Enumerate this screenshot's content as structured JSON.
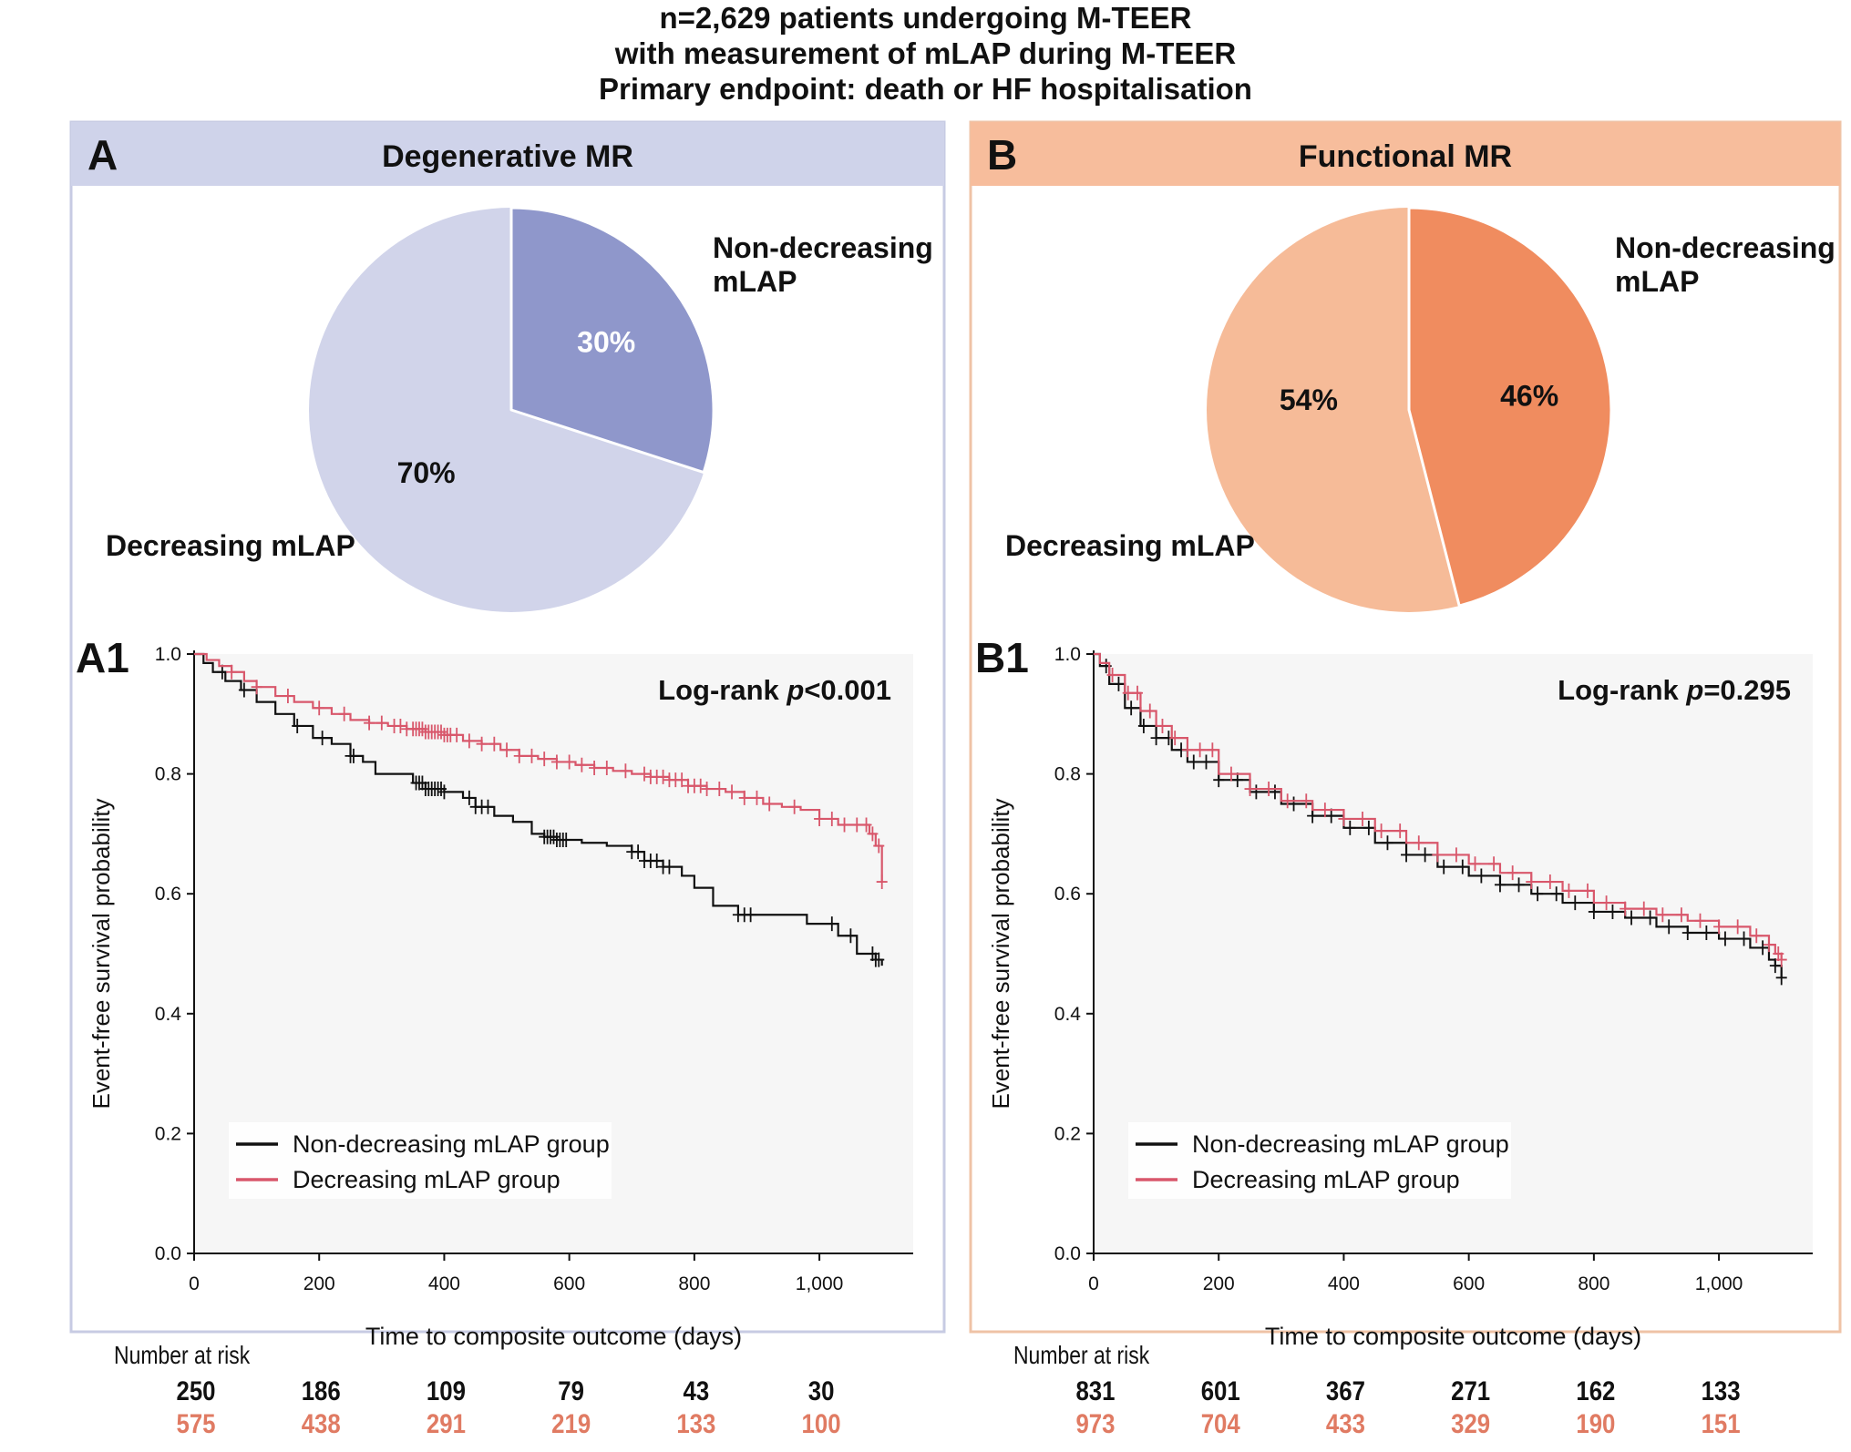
{
  "header": {
    "lines": [
      "n=2,629 patients undergoing M-TEER",
      "with measurement of mLAP during M-TEER",
      "Primary endpoint: death or HF hospitalisation"
    ]
  },
  "colors": {
    "panel_a_header": "#cfd3ea",
    "panel_a_border": "#c7cbe3",
    "panel_a_pie_major": "#d1d4ea",
    "panel_a_pie_minor": "#8f97cb",
    "panel_b_header": "#f7bd9c",
    "panel_b_border": "#efc3a6",
    "panel_b_pie_major": "#f6bb98",
    "panel_b_pie_minor": "#f08c5f",
    "km_nondecreasing": "#111111",
    "km_decreasing": "#d8576b",
    "risk_decreasing": "#e07b63",
    "plot_bg": "#f6f6f6"
  },
  "panels": [
    {
      "letter": "A",
      "title": "Degenerative MR",
      "pie_label_minor": [
        "Non-decreasing",
        "mLAP"
      ],
      "pie_label_major": "Decreasing mLAP",
      "km_letter": "A1",
      "logrank_prefix": "Log-rank ",
      "logrank_p": "p",
      "logrank_value": "<0.001",
      "number_at_risk_label": "Number at risk",
      "risk_nondecreasing": [
        "250",
        "186",
        "109",
        "79",
        "43",
        "30"
      ],
      "risk_decreasing": [
        "575",
        "438",
        "291",
        "219",
        "133",
        "100"
      ]
    },
    {
      "letter": "B",
      "title": "Functional MR",
      "pie_label_minor": [
        "Non-decreasing",
        "mLAP"
      ],
      "pie_label_major": "Decreasing mLAP",
      "km_letter": "B1",
      "logrank_prefix": "Log-rank ",
      "logrank_p": "p",
      "logrank_value": "=0.295",
      "number_at_risk_label": "Number at risk",
      "risk_nondecreasing": [
        "831",
        "601",
        "367",
        "271",
        "162",
        "133"
      ],
      "risk_decreasing": [
        "973",
        "704",
        "433",
        "329",
        "190",
        "151"
      ]
    }
  ],
  "chart_data": [
    {
      "type": "pie",
      "panel": "A",
      "slices": [
        {
          "label": "Non-decreasing mLAP",
          "value": 30,
          "text": "30%"
        },
        {
          "label": "Decreasing mLAP",
          "value": 70,
          "text": "70%"
        }
      ]
    },
    {
      "type": "pie",
      "panel": "B",
      "slices": [
        {
          "label": "Non-decreasing mLAP",
          "value": 46,
          "text": "46%"
        },
        {
          "label": "Decreasing mLAP",
          "value": 54,
          "text": "54%"
        }
      ]
    },
    {
      "type": "line",
      "panel": "A1",
      "xlabel": "Time to composite outcome (days)",
      "ylabel": "Event-free survival probability",
      "xlim": [
        0,
        1150
      ],
      "ylim": [
        0,
        1
      ],
      "xticks": [
        0,
        200,
        400,
        600,
        800,
        1000
      ],
      "xtick_labels": [
        "0",
        "200",
        "400",
        "600",
        "800",
        "1,000"
      ],
      "yticks": [
        0,
        0.2,
        0.4,
        0.6,
        0.8,
        1.0
      ],
      "ytick_labels": [
        "0.0",
        "0.2",
        "0.4",
        "0.6",
        "0.8",
        "1.0"
      ],
      "legend_position": "bottom-left",
      "series": [
        {
          "name": "Non-decreasing mLAP group",
          "x": [
            0,
            15,
            30,
            50,
            75,
            100,
            130,
            160,
            190,
            220,
            250,
            270,
            290,
            320,
            350,
            370,
            400,
            430,
            450,
            480,
            510,
            540,
            560,
            580,
            620,
            660,
            700,
            720,
            750,
            780,
            800,
            830,
            870,
            900,
            950,
            980,
            1000,
            1030,
            1060,
            1080,
            1090,
            1100
          ],
          "y": [
            1.0,
            0.985,
            0.97,
            0.955,
            0.94,
            0.92,
            0.9,
            0.88,
            0.86,
            0.85,
            0.83,
            0.82,
            0.8,
            0.8,
            0.785,
            0.775,
            0.77,
            0.76,
            0.745,
            0.73,
            0.72,
            0.7,
            0.695,
            0.69,
            0.685,
            0.68,
            0.67,
            0.655,
            0.645,
            0.63,
            0.61,
            0.58,
            0.565,
            0.565,
            0.565,
            0.55,
            0.55,
            0.53,
            0.5,
            0.5,
            0.49,
            0.48
          ],
          "censor_x": [
            45,
            80,
            165,
            205,
            250,
            255,
            355,
            360,
            365,
            370,
            375,
            380,
            385,
            390,
            395,
            400,
            440,
            450,
            460,
            470,
            560,
            565,
            570,
            575,
            580,
            585,
            590,
            595,
            700,
            710,
            720,
            730,
            740,
            750,
            760,
            870,
            880,
            890,
            1020,
            1050,
            1085,
            1090,
            1095
          ]
        },
        {
          "name": "Decreasing mLAP group",
          "x": [
            0,
            20,
            40,
            60,
            80,
            100,
            130,
            160,
            190,
            220,
            250,
            280,
            310,
            340,
            370,
            400,
            430,
            460,
            490,
            520,
            550,
            580,
            610,
            640,
            670,
            700,
            730,
            760,
            790,
            820,
            850,
            880,
            910,
            940,
            970,
            1000,
            1030,
            1060,
            1080,
            1090,
            1100
          ],
          "y": [
            1.0,
            0.99,
            0.98,
            0.97,
            0.955,
            0.945,
            0.93,
            0.92,
            0.91,
            0.9,
            0.89,
            0.885,
            0.88,
            0.875,
            0.87,
            0.865,
            0.855,
            0.85,
            0.84,
            0.83,
            0.825,
            0.82,
            0.815,
            0.81,
            0.805,
            0.8,
            0.795,
            0.79,
            0.78,
            0.775,
            0.77,
            0.76,
            0.75,
            0.745,
            0.74,
            0.725,
            0.715,
            0.715,
            0.7,
            0.68,
            0.62
          ],
          "censor_x": [
            60,
            100,
            150,
            200,
            240,
            280,
            300,
            320,
            330,
            340,
            350,
            355,
            360,
            365,
            370,
            375,
            380,
            385,
            390,
            395,
            400,
            405,
            410,
            420,
            440,
            460,
            480,
            500,
            520,
            540,
            560,
            580,
            600,
            620,
            640,
            660,
            690,
            720,
            730,
            740,
            750,
            760,
            770,
            780,
            790,
            800,
            810,
            820,
            840,
            860,
            880,
            900,
            920,
            960,
            1000,
            1020,
            1040,
            1060,
            1075,
            1085,
            1095,
            1100
          ]
        }
      ]
    },
    {
      "type": "line",
      "panel": "B1",
      "xlabel": "Time to composite outcome (days)",
      "ylabel": "Event-free survival probability",
      "xlim": [
        0,
        1150
      ],
      "ylim": [
        0,
        1
      ],
      "xticks": [
        0,
        200,
        400,
        600,
        800,
        1000
      ],
      "xtick_labels": [
        "0",
        "200",
        "400",
        "600",
        "800",
        "1,000"
      ],
      "yticks": [
        0,
        0.2,
        0.4,
        0.6,
        0.8,
        1.0
      ],
      "ytick_labels": [
        "0.0",
        "0.2",
        "0.4",
        "0.6",
        "0.8",
        "1.0"
      ],
      "legend_position": "bottom-left",
      "series": [
        {
          "name": "Non-decreasing mLAP group",
          "x": [
            0,
            10,
            25,
            50,
            75,
            100,
            125,
            150,
            200,
            250,
            300,
            350,
            400,
            450,
            500,
            550,
            600,
            650,
            700,
            750,
            800,
            850,
            900,
            950,
            1000,
            1050,
            1080,
            1090,
            1100
          ],
          "y": [
            1.0,
            0.98,
            0.95,
            0.91,
            0.88,
            0.86,
            0.84,
            0.82,
            0.79,
            0.77,
            0.75,
            0.73,
            0.71,
            0.685,
            0.665,
            0.645,
            0.63,
            0.615,
            0.6,
            0.585,
            0.57,
            0.56,
            0.545,
            0.535,
            0.525,
            0.51,
            0.49,
            0.48,
            0.46
          ],
          "censor_x": [
            20,
            40,
            60,
            80,
            100,
            120,
            140,
            160,
            180,
            200,
            230,
            260,
            290,
            320,
            350,
            380,
            410,
            440,
            470,
            500,
            530,
            560,
            590,
            620,
            650,
            680,
            710,
            740,
            770,
            800,
            830,
            860,
            890,
            920,
            950,
            980,
            1010,
            1040,
            1070,
            1090,
            1100
          ]
        },
        {
          "name": "Decreasing mLAP group",
          "x": [
            0,
            10,
            25,
            50,
            75,
            100,
            125,
            150,
            200,
            250,
            300,
            350,
            400,
            450,
            500,
            550,
            600,
            650,
            700,
            750,
            800,
            850,
            900,
            950,
            1000,
            1050,
            1080,
            1090,
            1100
          ],
          "y": [
            1.0,
            0.985,
            0.965,
            0.935,
            0.905,
            0.88,
            0.86,
            0.84,
            0.8,
            0.775,
            0.755,
            0.74,
            0.725,
            0.705,
            0.685,
            0.665,
            0.65,
            0.635,
            0.62,
            0.605,
            0.585,
            0.575,
            0.565,
            0.555,
            0.545,
            0.53,
            0.515,
            0.5,
            0.49
          ],
          "censor_x": [
            30,
            55,
            70,
            90,
            110,
            130,
            150,
            170,
            190,
            220,
            250,
            280,
            310,
            340,
            370,
            400,
            430,
            460,
            490,
            520,
            550,
            580,
            610,
            640,
            670,
            700,
            730,
            760,
            790,
            820,
            850,
            880,
            910,
            940,
            970,
            1000,
            1030,
            1060,
            1080,
            1095,
            1100
          ]
        }
      ]
    }
  ]
}
